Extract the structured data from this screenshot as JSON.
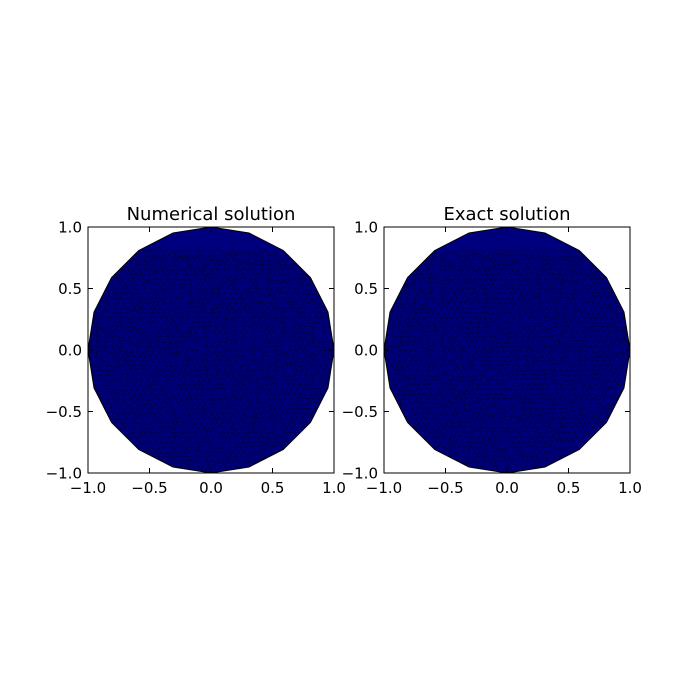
{
  "chart_data": [
    {
      "type": "heatmap",
      "title": "Numerical solution",
      "xlabel": "",
      "ylabel": "",
      "xlim": [
        -1.0,
        1.0
      ],
      "ylim": [
        -1.0,
        1.0
      ],
      "xticks": [
        "−1.0",
        "−0.5",
        "0.0",
        "0.5",
        "1.0"
      ],
      "yticks": [
        "−1.0",
        "−0.5",
        "0.0",
        "0.5",
        "1.0"
      ],
      "xtick_values": [
        -1.0,
        -0.5,
        0.0,
        0.5,
        1.0
      ],
      "ytick_values": [
        -1.0,
        -0.5,
        0.0,
        0.5,
        1.0
      ],
      "domain": {
        "shape": "disk",
        "center": [
          0.0,
          0.0
        ],
        "radius": 1.0,
        "boundary_segments": 20
      },
      "fill_color": "#00007f",
      "mesh_color": "#000000",
      "grid": false
    },
    {
      "type": "heatmap",
      "title": "Exact solution",
      "xlabel": "",
      "ylabel": "",
      "xlim": [
        -1.0,
        1.0
      ],
      "ylim": [
        -1.0,
        1.0
      ],
      "xticks": [
        "−1.0",
        "−0.5",
        "0.0",
        "0.5",
        "1.0"
      ],
      "yticks": [
        "−1.0",
        "−0.5",
        "0.0",
        "0.5",
        "1.0"
      ],
      "xtick_values": [
        -1.0,
        -0.5,
        0.0,
        0.5,
        1.0
      ],
      "ytick_values": [
        -1.0,
        -0.5,
        0.0,
        0.5,
        1.0
      ],
      "domain": {
        "shape": "disk",
        "center": [
          0.0,
          0.0
        ],
        "radius": 1.0,
        "boundary_segments": 20
      },
      "fill_color": "#00007f",
      "mesh_color": "#000000",
      "grid": false
    }
  ]
}
